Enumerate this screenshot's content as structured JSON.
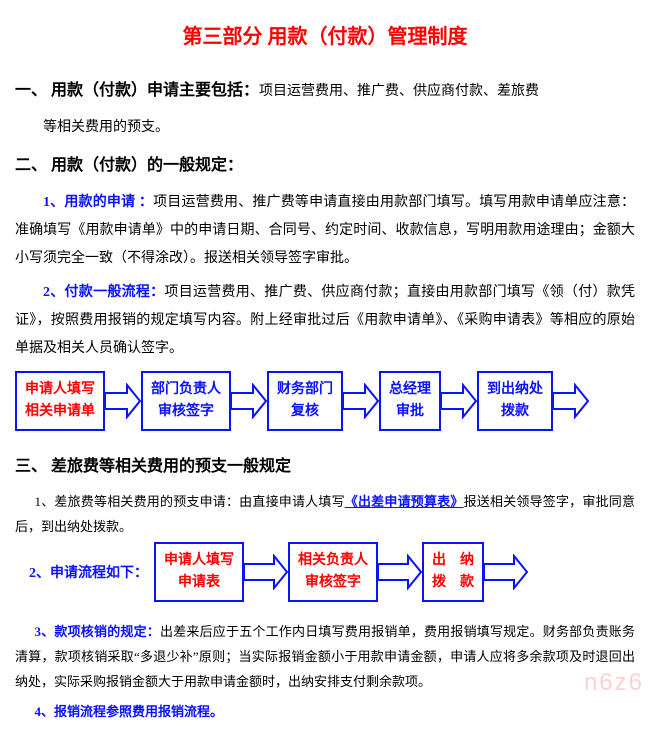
{
  "title": "第三部分 用款（付款）管理制度",
  "title_color": "#ff0000",
  "sec1": {
    "head": "一、 用款（付款）申请主要包括：",
    "inline": "项目运营费用、推广费、供应商付款、差旅费",
    "cont": "等相关费用的预支。"
  },
  "sec2": {
    "head": "二、 用款（付款）的一般规定：",
    "p1_lead": "1、用款的申请 ：",
    "p1": "项目运营费用、推广费等申请直接由用款部门填写。填写用款申请单应注意：准确填写《用款申请单》中的申请日期、合同号、约定时间、收款信息，写明用款用途理由；金额大小写须完全一致（不得涂改）。报送相关领导签字审批。",
    "p2_lead": "2、付款一般流程：",
    "p2": "项目运营费用、推广费、供应商付款；直接由用款部门填写《领（付）款凭证》，按照费用报销的规定填写内容。附上经审批过后《用款申请单》、《采购申请表》等相应的原始单据及相关人员确认签字。"
  },
  "flow1": {
    "boxes": [
      {
        "l1": "申请人填写",
        "l2": "相关申请单",
        "color": "red"
      },
      {
        "l1": "部门负责人",
        "l2": "审核签字",
        "color": "blue"
      },
      {
        "l1": "财务部门",
        "l2": "复核",
        "color": "blue"
      },
      {
        "l1": "总经理",
        "l2": "审批",
        "color": "blue"
      },
      {
        "l1": "到出纳处",
        "l2": "拨款",
        "color": "blue"
      }
    ],
    "arrow_color": "#0b12ff",
    "arrow_w": 36
  },
  "sec3": {
    "head": "三、 差旅费等相关费用的预支一般规定",
    "p1a": "1、差旅费等相关费用的预支申请：由直接申请人填写",
    "p1link": "《出差申请预算表》",
    "p1b": "报送相关领导签字，审批同意后，到出纳处拨款。",
    "p2_lead": "2、申请流程如下：",
    "p3_lead": "3、款项核销的规定：",
    "p3": "出差来后应于五个工作内日填写费用报销单，费用报销填写规定。财务部负责账务清算，款项核销采取“多退少补”原则；当实际报销金额小于用款申请金额，申请人应将多余款项及时退回出纳处，实际采购报销金额大于用款申请金额时，出纳安排支付剩余款项。",
    "p4_lead": "4、报销流程参照费用报销流程。"
  },
  "flow2": {
    "boxes": [
      {
        "l1": "申请人填写",
        "l2": "申请表"
      },
      {
        "l1": "相关负责人",
        "l2": "审核签字"
      },
      {
        "l1": "出　纳",
        "l2": "拨　款"
      }
    ],
    "arrow_color": "#0b12ff",
    "arrow_w": 44
  },
  "watermark": "n6z6"
}
